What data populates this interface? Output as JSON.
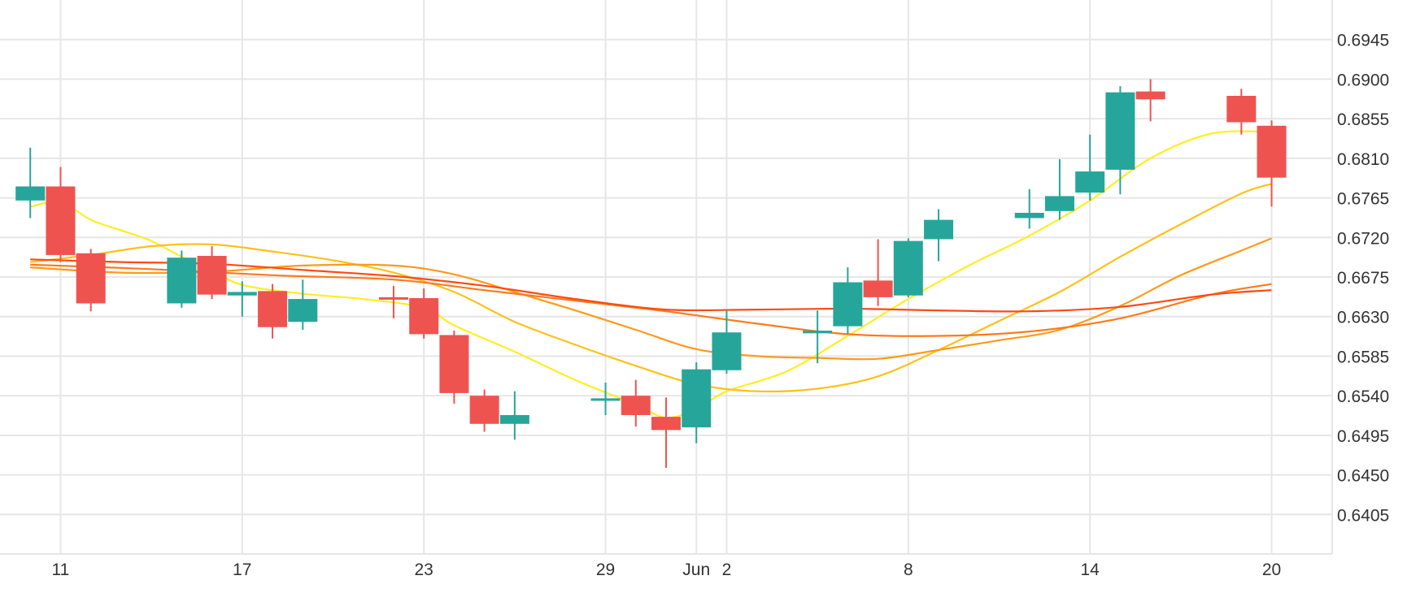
{
  "chart_data": {
    "type": "candlestick",
    "y_axis": {
      "position": "right",
      "ylim": [
        0.636,
        0.699
      ],
      "ticks": [
        "0.6405",
        "0.6450",
        "0.6495",
        "0.6540",
        "0.6585",
        "0.6630",
        "0.6675",
        "0.6720",
        "0.6765",
        "0.6810",
        "0.6855",
        "0.6900",
        "0.6945"
      ]
    },
    "x_axis": {
      "range": [
        "2023-05-09",
        "2023-06-22"
      ],
      "ticks": [
        {
          "date": "2023-05-11",
          "label": "11"
        },
        {
          "date": "2023-05-17",
          "label": "17"
        },
        {
          "date": "2023-05-23",
          "label": "23"
        },
        {
          "date": "2023-05-29",
          "label": "29"
        },
        {
          "date": "2023-06-01",
          "label": "Jun"
        },
        {
          "date": "2023-06-02",
          "label": "2"
        },
        {
          "date": "2023-06-08",
          "label": "8"
        },
        {
          "date": "2023-06-14",
          "label": "14"
        },
        {
          "date": "2023-06-20",
          "label": "20"
        }
      ]
    },
    "grid": true,
    "colors": {
      "up": "#26a69a",
      "down": "#ef5350",
      "grid": "#e6e6e6"
    },
    "candles": [
      {
        "date": "2023-05-10",
        "open": 0.6762,
        "high": 0.6822,
        "low": 0.6742,
        "close": 0.6778
      },
      {
        "date": "2023-05-11",
        "open": 0.6778,
        "high": 0.68,
        "low": 0.6692,
        "close": 0.67
      },
      {
        "date": "2023-05-12",
        "open": 0.6702,
        "high": 0.6707,
        "low": 0.6636,
        "close": 0.6645
      },
      {
        "date": "2023-05-15",
        "open": 0.6645,
        "high": 0.6705,
        "low": 0.664,
        "close": 0.6697
      },
      {
        "date": "2023-05-16",
        "open": 0.6699,
        "high": 0.671,
        "low": 0.665,
        "close": 0.6655
      },
      {
        "date": "2023-05-17",
        "open": 0.6654,
        "high": 0.667,
        "low": 0.663,
        "close": 0.6658
      },
      {
        "date": "2023-05-18",
        "open": 0.6659,
        "high": 0.6667,
        "low": 0.6605,
        "close": 0.6618
      },
      {
        "date": "2023-05-19",
        "open": 0.6624,
        "high": 0.6672,
        "low": 0.6615,
        "close": 0.665
      },
      {
        "date": "2023-05-22",
        "open": 0.6652,
        "high": 0.6665,
        "low": 0.6628,
        "close": 0.6651
      },
      {
        "date": "2023-05-23",
        "open": 0.6651,
        "high": 0.6662,
        "low": 0.6605,
        "close": 0.661
      },
      {
        "date": "2023-05-24",
        "open": 0.6609,
        "high": 0.6614,
        "low": 0.6531,
        "close": 0.6543
      },
      {
        "date": "2023-05-25",
        "open": 0.654,
        "high": 0.6547,
        "low": 0.6499,
        "close": 0.6508
      },
      {
        "date": "2023-05-26",
        "open": 0.6508,
        "high": 0.6545,
        "low": 0.649,
        "close": 0.6518
      },
      {
        "date": "2023-05-29",
        "open": 0.6535,
        "high": 0.6555,
        "low": 0.6518,
        "close": 0.6537
      },
      {
        "date": "2023-05-30",
        "open": 0.654,
        "high": 0.6558,
        "low": 0.6505,
        "close": 0.6518
      },
      {
        "date": "2023-05-31",
        "open": 0.6516,
        "high": 0.6538,
        "low": 0.6458,
        "close": 0.6501
      },
      {
        "date": "2023-06-01",
        "open": 0.6504,
        "high": 0.6578,
        "low": 0.6486,
        "close": 0.657
      },
      {
        "date": "2023-06-02",
        "open": 0.6569,
        "high": 0.6637,
        "low": 0.6565,
        "close": 0.6612
      },
      {
        "date": "2023-06-05",
        "open": 0.6611,
        "high": 0.6637,
        "low": 0.6577,
        "close": 0.6614
      },
      {
        "date": "2023-06-06",
        "open": 0.6619,
        "high": 0.6686,
        "low": 0.661,
        "close": 0.6669
      },
      {
        "date": "2023-06-07",
        "open": 0.6671,
        "high": 0.6718,
        "low": 0.6642,
        "close": 0.6652
      },
      {
        "date": "2023-06-08",
        "open": 0.6654,
        "high": 0.6719,
        "low": 0.6652,
        "close": 0.6716
      },
      {
        "date": "2023-06-09",
        "open": 0.6718,
        "high": 0.6752,
        "low": 0.6693,
        "close": 0.674
      },
      {
        "date": "2023-06-12",
        "open": 0.6742,
        "high": 0.6775,
        "low": 0.673,
        "close": 0.6748
      },
      {
        "date": "2023-06-13",
        "open": 0.675,
        "high": 0.6809,
        "low": 0.674,
        "close": 0.6767
      },
      {
        "date": "2023-06-14",
        "open": 0.6771,
        "high": 0.6837,
        "low": 0.6762,
        "close": 0.6795
      },
      {
        "date": "2023-06-15",
        "open": 0.6797,
        "high": 0.6892,
        "low": 0.6769,
        "close": 0.6885
      },
      {
        "date": "2023-06-16",
        "open": 0.6886,
        "high": 0.69,
        "low": 0.6852,
        "close": 0.6877
      },
      {
        "date": "2023-06-19",
        "open": 0.6881,
        "high": 0.6889,
        "low": 0.6837,
        "close": 0.6851
      },
      {
        "date": "2023-06-20",
        "open": 0.6847,
        "high": 0.6853,
        "low": 0.6755,
        "close": 0.6788
      }
    ],
    "moving_averages": [
      {
        "color": "#ffee22",
        "points": [
          {
            "date": "2023-05-10",
            "value": 0.6755
          },
          {
            "date": "2023-05-11",
            "value": 0.676
          },
          {
            "date": "2023-05-12",
            "value": 0.674
          },
          {
            "date": "2023-05-13",
            "value": 0.6728
          },
          {
            "date": "2023-05-14",
            "value": 0.6716
          },
          {
            "date": "2023-05-15",
            "value": 0.6698
          },
          {
            "date": "2023-05-16",
            "value": 0.6683
          },
          {
            "date": "2023-05-17",
            "value": 0.6666
          },
          {
            "date": "2023-05-19",
            "value": 0.6656
          },
          {
            "date": "2023-05-21",
            "value": 0.665
          },
          {
            "date": "2023-05-23",
            "value": 0.664
          },
          {
            "date": "2023-05-24",
            "value": 0.662
          },
          {
            "date": "2023-05-26",
            "value": 0.659
          },
          {
            "date": "2023-05-28",
            "value": 0.6558
          },
          {
            "date": "2023-05-30",
            "value": 0.653
          },
          {
            "date": "2023-05-31",
            "value": 0.6515
          },
          {
            "date": "2023-06-01",
            "value": 0.6525
          },
          {
            "date": "2023-06-02",
            "value": 0.6545
          },
          {
            "date": "2023-06-04",
            "value": 0.6568
          },
          {
            "date": "2023-06-06",
            "value": 0.6608
          },
          {
            "date": "2023-06-08",
            "value": 0.665
          },
          {
            "date": "2023-06-10",
            "value": 0.6688
          },
          {
            "date": "2023-06-12",
            "value": 0.6722
          },
          {
            "date": "2023-06-14",
            "value": 0.6762
          },
          {
            "date": "2023-06-16",
            "value": 0.681
          },
          {
            "date": "2023-06-18",
            "value": 0.6838
          },
          {
            "date": "2023-06-20",
            "value": 0.684
          }
        ]
      },
      {
        "color": "#ffc018",
        "points": [
          {
            "date": "2023-05-10",
            "value": 0.6692
          },
          {
            "date": "2023-05-12",
            "value": 0.67
          },
          {
            "date": "2023-05-14",
            "value": 0.671
          },
          {
            "date": "2023-05-16",
            "value": 0.6712
          },
          {
            "date": "2023-05-18",
            "value": 0.6704
          },
          {
            "date": "2023-05-20",
            "value": 0.6694
          },
          {
            "date": "2023-05-22",
            "value": 0.668
          },
          {
            "date": "2023-05-24",
            "value": 0.6658
          },
          {
            "date": "2023-05-26",
            "value": 0.6624
          },
          {
            "date": "2023-05-28",
            "value": 0.6598
          },
          {
            "date": "2023-05-30",
            "value": 0.6574
          },
          {
            "date": "2023-06-01",
            "value": 0.6553
          },
          {
            "date": "2023-06-03",
            "value": 0.6545
          },
          {
            "date": "2023-06-05",
            "value": 0.6548
          },
          {
            "date": "2023-06-07",
            "value": 0.6562
          },
          {
            "date": "2023-06-09",
            "value": 0.6592
          },
          {
            "date": "2023-06-11",
            "value": 0.6625
          },
          {
            "date": "2023-06-13",
            "value": 0.6658
          },
          {
            "date": "2023-06-15",
            "value": 0.6698
          },
          {
            "date": "2023-06-17",
            "value": 0.6735
          },
          {
            "date": "2023-06-19",
            "value": 0.677
          },
          {
            "date": "2023-06-20",
            "value": 0.6781
          }
        ]
      },
      {
        "color": "#ff9a1a",
        "points": [
          {
            "date": "2023-05-10",
            "value": 0.6686
          },
          {
            "date": "2023-05-13",
            "value": 0.668
          },
          {
            "date": "2023-05-16",
            "value": 0.6681
          },
          {
            "date": "2023-05-19",
            "value": 0.6688
          },
          {
            "date": "2023-05-22",
            "value": 0.6688
          },
          {
            "date": "2023-05-24",
            "value": 0.6678
          },
          {
            "date": "2023-05-26",
            "value": 0.6658
          },
          {
            "date": "2023-05-28",
            "value": 0.6637
          },
          {
            "date": "2023-05-30",
            "value": 0.6615
          },
          {
            "date": "2023-06-01",
            "value": 0.6593
          },
          {
            "date": "2023-06-03",
            "value": 0.6585
          },
          {
            "date": "2023-06-05",
            "value": 0.6583
          },
          {
            "date": "2023-06-07",
            "value": 0.6582
          },
          {
            "date": "2023-06-09",
            "value": 0.6592
          },
          {
            "date": "2023-06-11",
            "value": 0.6603
          },
          {
            "date": "2023-06-13",
            "value": 0.6615
          },
          {
            "date": "2023-06-15",
            "value": 0.6642
          },
          {
            "date": "2023-06-17",
            "value": 0.6677
          },
          {
            "date": "2023-06-19",
            "value": 0.6705
          },
          {
            "date": "2023-06-20",
            "value": 0.6719
          }
        ]
      },
      {
        "color": "#ff7a1a",
        "points": [
          {
            "date": "2023-05-10",
            "value": 0.6689
          },
          {
            "date": "2023-05-14",
            "value": 0.6684
          },
          {
            "date": "2023-05-18",
            "value": 0.6677
          },
          {
            "date": "2023-05-22",
            "value": 0.6672
          },
          {
            "date": "2023-05-25",
            "value": 0.666
          },
          {
            "date": "2023-05-28",
            "value": 0.6648
          },
          {
            "date": "2023-05-31",
            "value": 0.6636
          },
          {
            "date": "2023-06-03",
            "value": 0.6622
          },
          {
            "date": "2023-06-06",
            "value": 0.661
          },
          {
            "date": "2023-06-09",
            "value": 0.6608
          },
          {
            "date": "2023-06-12",
            "value": 0.6613
          },
          {
            "date": "2023-06-15",
            "value": 0.6628
          },
          {
            "date": "2023-06-18",
            "value": 0.6655
          },
          {
            "date": "2023-06-20",
            "value": 0.6667
          }
        ]
      },
      {
        "color": "#ff4a10",
        "points": [
          {
            "date": "2023-05-10",
            "value": 0.6695
          },
          {
            "date": "2023-05-13",
            "value": 0.6692
          },
          {
            "date": "2023-05-16",
            "value": 0.669
          },
          {
            "date": "2023-05-19",
            "value": 0.6683
          },
          {
            "date": "2023-05-22",
            "value": 0.6676
          },
          {
            "date": "2023-05-25",
            "value": 0.6665
          },
          {
            "date": "2023-05-28",
            "value": 0.665
          },
          {
            "date": "2023-05-31",
            "value": 0.6638
          },
          {
            "date": "2023-06-03",
            "value": 0.6638
          },
          {
            "date": "2023-06-06",
            "value": 0.6639
          },
          {
            "date": "2023-06-09",
            "value": 0.6637
          },
          {
            "date": "2023-06-12",
            "value": 0.6636
          },
          {
            "date": "2023-06-15",
            "value": 0.6641
          },
          {
            "date": "2023-06-18",
            "value": 0.6655
          },
          {
            "date": "2023-06-20",
            "value": 0.666
          }
        ]
      }
    ]
  }
}
